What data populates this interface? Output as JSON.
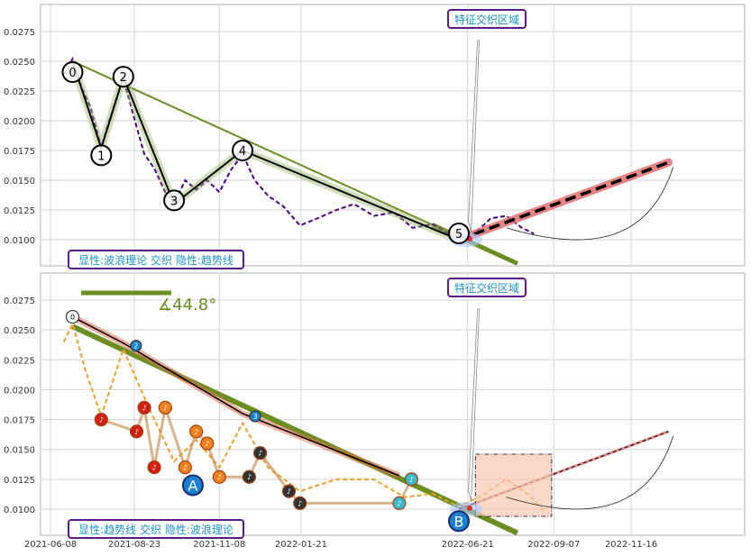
{
  "chart_data": [
    {
      "type": "line",
      "title": "",
      "xlabel": "",
      "ylabel": "",
      "ylim": [
        0.0078,
        0.0295
      ],
      "y_ticks": [
        "0.0100",
        "0.0125",
        "0.0150",
        "0.0175",
        "0.0200",
        "0.0225",
        "0.0250",
        "0.0275"
      ],
      "grid": true,
      "callout_label": "特征交织区域",
      "legend_text": "显性:波浪理论 交织 隐性:趋势线",
      "wave_points": [
        {
          "label": "0",
          "date": "2021-06-28",
          "value": 0.025
        },
        {
          "label": "1",
          "date": "2021-07-24",
          "value": 0.0177
        },
        {
          "label": "2",
          "date": "2021-08-13",
          "value": 0.0237
        },
        {
          "label": "3",
          "date": "2021-09-28",
          "value": 0.013
        },
        {
          "label": "4",
          "date": "2021-11-29",
          "value": 0.0175
        },
        {
          "label": "5",
          "date": "2022-06-13",
          "value": 0.01
        }
      ],
      "price_series": [
        {
          "date": "2021-06-20",
          "value": 0.0238
        },
        {
          "date": "2021-06-28",
          "value": 0.0252
        },
        {
          "date": "2021-07-06",
          "value": 0.0228
        },
        {
          "date": "2021-07-14",
          "value": 0.0212
        },
        {
          "date": "2021-07-24",
          "value": 0.0178
        },
        {
          "date": "2021-08-02",
          "value": 0.0205
        },
        {
          "date": "2021-08-13",
          "value": 0.0236
        },
        {
          "date": "2021-08-22",
          "value": 0.0205
        },
        {
          "date": "2021-09-01",
          "value": 0.0172
        },
        {
          "date": "2021-09-10",
          "value": 0.016
        },
        {
          "date": "2021-09-20",
          "value": 0.014
        },
        {
          "date": "2021-09-28",
          "value": 0.013
        },
        {
          "date": "2021-10-08",
          "value": 0.015
        },
        {
          "date": "2021-10-18",
          "value": 0.0142
        },
        {
          "date": "2021-10-28",
          "value": 0.015
        },
        {
          "date": "2021-11-08",
          "value": 0.014
        },
        {
          "date": "2021-11-18",
          "value": 0.0158
        },
        {
          "date": "2021-11-29",
          "value": 0.0172
        },
        {
          "date": "2021-12-10",
          "value": 0.015
        },
        {
          "date": "2021-12-22",
          "value": 0.0137
        },
        {
          "date": "2022-01-05",
          "value": 0.0128
        },
        {
          "date": "2022-01-20",
          "value": 0.0112
        },
        {
          "date": "2022-02-05",
          "value": 0.0118
        },
        {
          "date": "2022-02-22",
          "value": 0.0125
        },
        {
          "date": "2022-03-10",
          "value": 0.013
        },
        {
          "date": "2022-03-28",
          "value": 0.012
        },
        {
          "date": "2022-04-15",
          "value": 0.0123
        },
        {
          "date": "2022-05-02",
          "value": 0.011
        },
        {
          "date": "2022-05-20",
          "value": 0.0113
        },
        {
          "date": "2022-06-13",
          "value": 0.01
        },
        {
          "date": "2022-06-28",
          "value": 0.0106
        },
        {
          "date": "2022-07-12",
          "value": 0.0118
        },
        {
          "date": "2022-07-26",
          "value": 0.012
        },
        {
          "date": "2022-08-09",
          "value": 0.011
        },
        {
          "date": "2022-08-20",
          "value": 0.0105
        }
      ],
      "trendline": {
        "start": {
          "date": "2021-06-28",
          "value": 0.025
        },
        "end": {
          "date": "2022-08-05",
          "value": 0.008
        }
      },
      "projection": {
        "start": {
          "date": "2022-06-13",
          "value": 0.01
        },
        "end": {
          "date": "2022-12-20",
          "value": 0.0165
        }
      }
    },
    {
      "type": "line",
      "title": "",
      "xlabel": "",
      "ylabel": "",
      "ylim": [
        0.0078,
        0.0295
      ],
      "y_ticks": [
        "0.0100",
        "0.0125",
        "0.0150",
        "0.0175",
        "0.0200",
        "0.0225",
        "0.0250",
        "0.0275"
      ],
      "x_ticks": [
        "2021-06-08",
        "2021-08-23",
        "2021-11-08",
        "2022-01-21",
        "2022-06-21",
        "2022-09-07",
        "2022-11-16"
      ],
      "grid": true,
      "callout_label": "特征交织区域",
      "legend_text": "显性:趋势线 交织 隐性:波浪理论",
      "angle_label": "∡44.8°",
      "markers": [
        {
          "label": "A",
          "date": "2021-10-15",
          "value": 0.012
        },
        {
          "label": "B",
          "date": "2022-06-13",
          "value": 0.009
        }
      ],
      "wave_points": [
        {
          "label": "0",
          "date": "2021-06-28",
          "value": 0.0261
        },
        {
          "label": "2",
          "date": "2021-08-13",
          "value": 0.0239
        },
        {
          "label": "3",
          "date": "2021-11-29",
          "value": 0.018
        },
        {
          "label": "4",
          "date": "2022-04-20",
          "value": 0.0128
        }
      ],
      "note_points": [
        {
          "date": "2021-07-24",
          "value": 0.0175
        },
        {
          "date": "2021-08-25",
          "value": 0.0165
        },
        {
          "date": "2021-09-01",
          "value": 0.0185
        },
        {
          "date": "2021-09-10",
          "value": 0.0135
        },
        {
          "date": "2021-09-20",
          "value": 0.0185
        },
        {
          "date": "2021-10-08",
          "value": 0.0135
        },
        {
          "date": "2021-10-18",
          "value": 0.0165
        },
        {
          "date": "2021-10-28",
          "value": 0.0155
        },
        {
          "date": "2021-11-08",
          "value": 0.0127
        },
        {
          "date": "2021-12-05",
          "value": 0.0127
        },
        {
          "date": "2021-12-15",
          "value": 0.0147
        },
        {
          "date": "2022-01-10",
          "value": 0.0115
        },
        {
          "date": "2022-01-20",
          "value": 0.0105
        },
        {
          "date": "2022-04-20",
          "value": 0.0105
        },
        {
          "date": "2022-05-01",
          "value": 0.0125
        }
      ],
      "price_series": [
        {
          "date": "2021-06-20",
          "value": 0.024
        },
        {
          "date": "2021-06-28",
          "value": 0.0255
        },
        {
          "date": "2021-07-10",
          "value": 0.0215
        },
        {
          "date": "2021-07-24",
          "value": 0.0178
        },
        {
          "date": "2021-08-13",
          "value": 0.0234
        },
        {
          "date": "2021-09-05",
          "value": 0.0185
        },
        {
          "date": "2021-09-28",
          "value": 0.014
        },
        {
          "date": "2021-10-18",
          "value": 0.0158
        },
        {
          "date": "2021-11-08",
          "value": 0.0135
        },
        {
          "date": "2021-11-29",
          "value": 0.0172
        },
        {
          "date": "2021-12-22",
          "value": 0.0135
        },
        {
          "date": "2022-01-20",
          "value": 0.0115
        },
        {
          "date": "2022-02-22",
          "value": 0.0125
        },
        {
          "date": "2022-03-28",
          "value": 0.0125
        },
        {
          "date": "2022-04-25",
          "value": 0.011
        },
        {
          "date": "2022-05-20",
          "value": 0.0113
        },
        {
          "date": "2022-06-13",
          "value": 0.0102
        },
        {
          "date": "2022-07-05",
          "value": 0.0112
        },
        {
          "date": "2022-07-26",
          "value": 0.0125
        },
        {
          "date": "2022-08-15",
          "value": 0.0112
        },
        {
          "date": "2022-08-30",
          "value": 0.0098
        }
      ],
      "trendline": {
        "start": {
          "date": "2021-06-28",
          "value": 0.0253
        },
        "end": {
          "date": "2022-08-05",
          "value": 0.008
        }
      },
      "projection": {
        "start": {
          "date": "2022-06-13",
          "value": 0.01
        },
        "end": {
          "date": "2022-12-20",
          "value": 0.0165
        }
      }
    }
  ],
  "colors": {
    "trend_green": "#6b8e23",
    "wave_black": "#000000",
    "price_purple": "#4b0082",
    "price_orange": "#f0a030",
    "projection_red": "#e07070",
    "callout_border": "#5a1a8a",
    "callout_text": "#1e90c8",
    "marker_blue": "#1a80d0",
    "note_red": "#d02010",
    "note_orange": "#f08020",
    "note_dark": "#333333",
    "zone_fill": "#f8c8b0"
  }
}
